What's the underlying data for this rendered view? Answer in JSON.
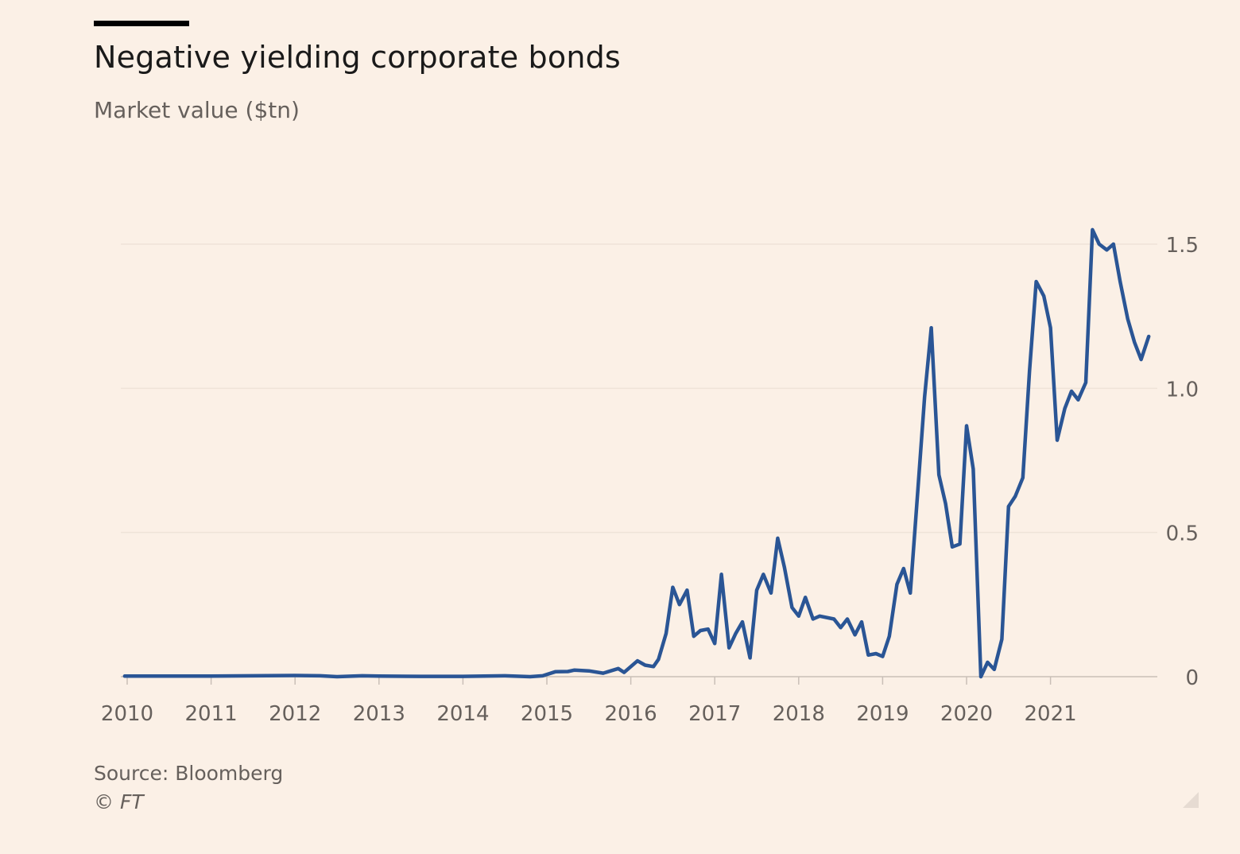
{
  "title": "Negative yielding corporate bonds",
  "subtitle": "Market value ($tn)",
  "source": "Source: Bloomberg",
  "copyright": "© FT",
  "colors": {
    "background": "#fbf0e6",
    "line": "#2a5595",
    "grid": "#efe3d8",
    "axis": "#c9bfb7",
    "tick_text": "#66605c"
  },
  "chart_data": {
    "type": "line",
    "title": "Negative yielding corporate bonds",
    "subtitle": "Market value ($tn)",
    "xlabel": "",
    "ylabel": "Market value ($tn)",
    "xlim": [
      2010,
      2022.3
    ],
    "ylim": [
      0,
      1.6
    ],
    "x_ticks": [
      2010,
      2011,
      2012,
      2013,
      2014,
      2015,
      2016,
      2017,
      2018,
      2019,
      2020,
      2021
    ],
    "x_tick_labels": [
      "2010",
      "2011",
      "2012",
      "2013",
      "2014",
      "2015",
      "2016",
      "2017",
      "2018",
      "2019",
      "2020",
      "2021"
    ],
    "y_ticks": [
      0,
      0.5,
      1.0,
      1.5
    ],
    "y_tick_labels": [
      "0",
      "0.5",
      "1.0",
      "1.5"
    ],
    "grid": true,
    "y_axis_position": "right",
    "series": [
      {
        "name": "Market value ($tn)",
        "points": [
          [
            2009.97,
            0.002
          ],
          [
            2010.5,
            0.002
          ],
          [
            2011.0,
            0.002
          ],
          [
            2011.5,
            0.003
          ],
          [
            2012.0,
            0.004
          ],
          [
            2012.3,
            0.003
          ],
          [
            2012.5,
            0.0
          ],
          [
            2012.8,
            0.003
          ],
          [
            2013.0,
            0.002
          ],
          [
            2013.5,
            0.001
          ],
          [
            2014.0,
            0.001
          ],
          [
            2014.5,
            0.003
          ],
          [
            2014.8,
            0.0
          ],
          [
            2014.95,
            0.003
          ],
          [
            2015.1,
            0.017
          ],
          [
            2015.25,
            0.018
          ],
          [
            2015.33,
            0.023
          ],
          [
            2015.5,
            0.02
          ],
          [
            2015.67,
            0.012
          ],
          [
            2015.85,
            0.028
          ],
          [
            2015.92,
            0.015
          ],
          [
            2016.08,
            0.055
          ],
          [
            2016.17,
            0.04
          ],
          [
            2016.27,
            0.035
          ],
          [
            2016.33,
            0.06
          ],
          [
            2016.42,
            0.15
          ],
          [
            2016.5,
            0.31
          ],
          [
            2016.58,
            0.25
          ],
          [
            2016.67,
            0.3
          ],
          [
            2016.75,
            0.14
          ],
          [
            2016.83,
            0.16
          ],
          [
            2016.92,
            0.165
          ],
          [
            2017.0,
            0.115
          ],
          [
            2017.08,
            0.355
          ],
          [
            2017.17,
            0.1
          ],
          [
            2017.25,
            0.15
          ],
          [
            2017.33,
            0.19
          ],
          [
            2017.42,
            0.065
          ],
          [
            2017.5,
            0.3
          ],
          [
            2017.58,
            0.355
          ],
          [
            2017.67,
            0.29
          ],
          [
            2017.75,
            0.48
          ],
          [
            2017.83,
            0.38
          ],
          [
            2017.92,
            0.24
          ],
          [
            2018.0,
            0.21
          ],
          [
            2018.08,
            0.275
          ],
          [
            2018.17,
            0.2
          ],
          [
            2018.25,
            0.21
          ],
          [
            2018.42,
            0.2
          ],
          [
            2018.5,
            0.17
          ],
          [
            2018.58,
            0.2
          ],
          [
            2018.67,
            0.145
          ],
          [
            2018.75,
            0.19
          ],
          [
            2018.83,
            0.075
          ],
          [
            2018.92,
            0.08
          ],
          [
            2019.0,
            0.07
          ],
          [
            2019.08,
            0.14
          ],
          [
            2019.17,
            0.32
          ],
          [
            2019.25,
            0.375
          ],
          [
            2019.33,
            0.29
          ],
          [
            2019.42,
            0.65
          ],
          [
            2019.5,
            0.97
          ],
          [
            2019.58,
            1.21
          ],
          [
            2019.67,
            0.7
          ],
          [
            2019.75,
            0.6
          ],
          [
            2019.83,
            0.45
          ],
          [
            2019.92,
            0.46
          ],
          [
            2020.0,
            0.87
          ],
          [
            2020.08,
            0.72
          ],
          [
            2020.17,
            0.0
          ],
          [
            2020.25,
            0.05
          ],
          [
            2020.33,
            0.025
          ],
          [
            2020.42,
            0.13
          ],
          [
            2020.5,
            0.59
          ],
          [
            2020.58,
            0.625
          ],
          [
            2020.67,
            0.69
          ],
          [
            2020.75,
            1.06
          ],
          [
            2020.83,
            1.37
          ],
          [
            2020.92,
            1.32
          ],
          [
            2021.0,
            1.21
          ],
          [
            2021.08,
            0.82
          ],
          [
            2021.17,
            0.93
          ],
          [
            2021.25,
            0.99
          ],
          [
            2021.33,
            0.96
          ],
          [
            2021.42,
            1.02
          ],
          [
            2021.5,
            1.55
          ],
          [
            2021.58,
            1.5
          ],
          [
            2021.67,
            1.48
          ],
          [
            2021.75,
            1.5
          ],
          [
            2021.83,
            1.37
          ],
          [
            2021.92,
            1.24
          ],
          [
            2022.0,
            1.16
          ],
          [
            2022.08,
            1.1
          ],
          [
            2022.17,
            1.18
          ]
        ]
      }
    ]
  }
}
